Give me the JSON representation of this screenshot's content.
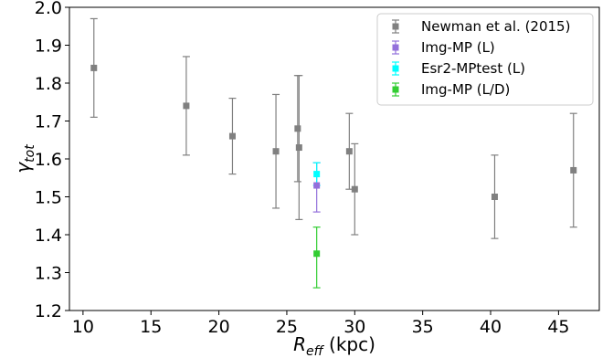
{
  "chart_data": {
    "type": "scatter",
    "title": "",
    "xlabel": {
      "main": "R",
      "sub": "eff",
      "unit": " (kpc)"
    },
    "ylabel": {
      "main": "γ",
      "sub": "tot"
    },
    "xlim": [
      9,
      48
    ],
    "ylim": [
      1.2,
      2.0
    ],
    "xticks": [
      10,
      15,
      20,
      25,
      30,
      35,
      40,
      45
    ],
    "yticks": [
      1.2,
      1.3,
      1.4,
      1.5,
      1.6,
      1.7,
      1.8,
      1.9,
      2.0
    ],
    "grid": false,
    "legend_position": "top-right",
    "series": [
      {
        "name": "Newman et al. (2015)",
        "color": "#808080",
        "points": [
          {
            "x": 10.8,
            "y": 1.84,
            "ylow": 1.71,
            "yhigh": 1.97
          },
          {
            "x": 17.6,
            "y": 1.74,
            "ylow": 1.61,
            "yhigh": 1.87
          },
          {
            "x": 21.0,
            "y": 1.66,
            "ylow": 1.56,
            "yhigh": 1.76
          },
          {
            "x": 24.2,
            "y": 1.62,
            "ylow": 1.47,
            "yhigh": 1.77
          },
          {
            "x": 25.8,
            "y": 1.68,
            "ylow": 1.54,
            "yhigh": 1.82
          },
          {
            "x": 25.9,
            "y": 1.63,
            "ylow": 1.44,
            "yhigh": 1.82
          },
          {
            "x": 29.6,
            "y": 1.62,
            "ylow": 1.52,
            "yhigh": 1.72
          },
          {
            "x": 30.0,
            "y": 1.52,
            "ylow": 1.4,
            "yhigh": 1.64
          },
          {
            "x": 40.3,
            "y": 1.5,
            "ylow": 1.39,
            "yhigh": 1.61
          },
          {
            "x": 46.1,
            "y": 1.57,
            "ylow": 1.42,
            "yhigh": 1.72
          }
        ]
      },
      {
        "name": "Img-MP (L)",
        "color": "#9370DB",
        "points": [
          {
            "x": 27.2,
            "y": 1.53,
            "ylow": 1.46,
            "yhigh": 1.59
          }
        ]
      },
      {
        "name": "Esr2-MPtest (L)",
        "color": "#00FFFF",
        "points": [
          {
            "x": 27.2,
            "y": 1.56,
            "ylow": 1.53,
            "yhigh": 1.59
          }
        ]
      },
      {
        "name": "Img-MP (L/D)",
        "color": "#32CD32",
        "points": [
          {
            "x": 27.2,
            "y": 1.35,
            "ylow": 1.26,
            "yhigh": 1.42
          }
        ]
      }
    ]
  }
}
